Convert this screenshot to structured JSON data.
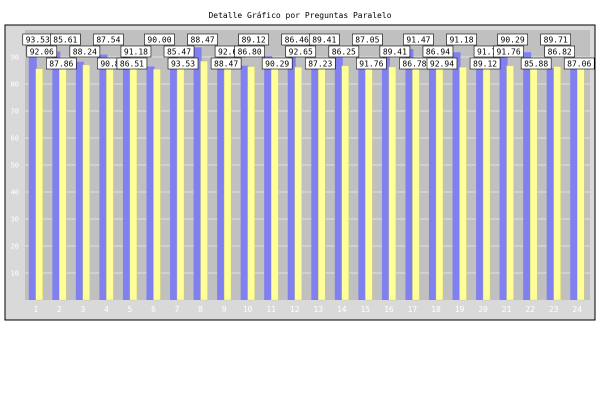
{
  "chart_data": {
    "type": "bar",
    "title": "Detalle Gráfico por Preguntas Paralelo",
    "xlabel": "",
    "ylabel": "",
    "ylim": [
      0,
      100
    ],
    "yticks": [
      10,
      20,
      30,
      40,
      50,
      60,
      70,
      80,
      90
    ],
    "grid": true,
    "legend": "none",
    "categories": [
      "1",
      "2",
      "3",
      "4",
      "5",
      "6",
      "7",
      "8",
      "9",
      "10",
      "11",
      "12",
      "13",
      "14",
      "15",
      "16",
      "17",
      "18",
      "19",
      "20",
      "21",
      "22",
      "23",
      "24"
    ],
    "series": [
      {
        "color": "#8080f0",
        "values": [
          93.53,
          92.06,
          88.24,
          90.88,
          91.18,
          86.51,
          90.0,
          93.53,
          92.65,
          86.8,
          90.29,
          92.65,
          89.41,
          91.76,
          89.41,
          91.47,
          92.94,
          91.18,
          91.76,
          89.12,
          90.29,
          91.76,
          85.88,
          89.71
        ]
      },
      {
        "color": "#ffff99",
        "values": [
          85.61,
          87.86,
          87.06,
          87.54,
          86.51,
          85.47,
          88.47,
          88.47,
          89.12,
          86.46,
          87.23,
          86.25,
          87.05,
          86.78,
          86.94,
          86.32,
          86.92,
          87.06,
          86.18,
          86.77,
          86.77,
          85.88,
          86.47,
          86.82
        ]
      }
    ],
    "value_labels": [
      "93.53",
      "92.06",
      "87.86",
      "85.61",
      "88.24",
      "90.88",
      "87.54",
      "91.18",
      "86.51",
      "90.00",
      "85.47",
      "93.53",
      "88.47",
      "92.65",
      "88.47",
      "89.12",
      "86.80",
      "90.29",
      "86.46",
      "92.65",
      "87.23",
      "89.41",
      "86.25",
      "91.76",
      "87.05",
      "89.41",
      "86.78",
      "91.47",
      "86.94",
      "92.94",
      "91.18",
      "91.76",
      "89.12",
      "90.29",
      "91.76",
      "85.88",
      "89.71",
      "86.82",
      "87.06"
    ]
  },
  "colors": {
    "plot_bg": "#c0c0c0",
    "outer_bg": "#d9d9d9",
    "label_bg": "#ffffff"
  }
}
